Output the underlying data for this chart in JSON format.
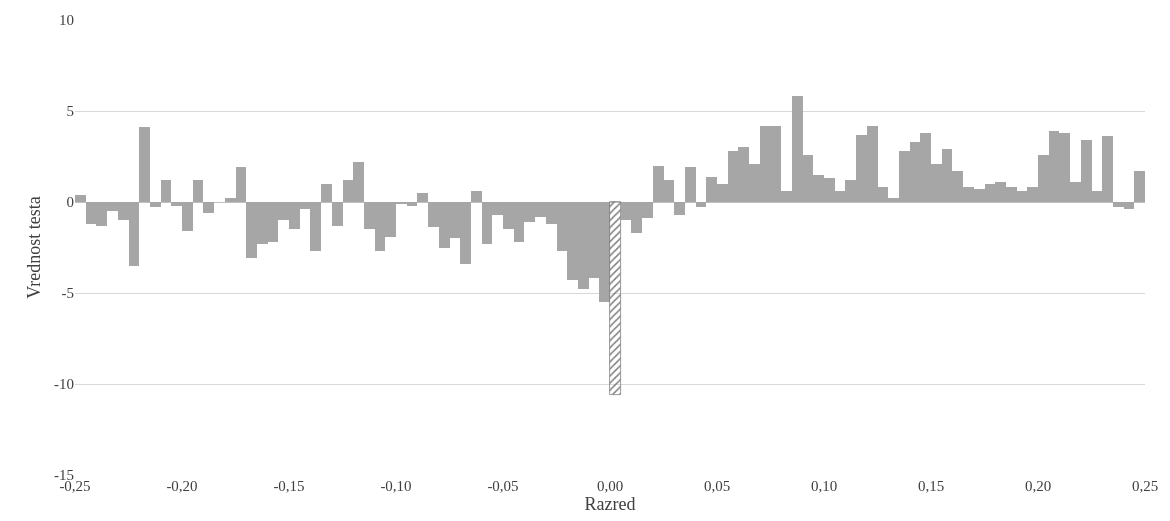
{
  "chart_data": {
    "type": "bar",
    "xlabel": "Razred",
    "ylabel": "Vrednost testa",
    "x": [
      -0.2475,
      -0.2425,
      -0.2375,
      -0.2325,
      -0.2275,
      -0.2225,
      -0.2175,
      -0.2125,
      -0.2075,
      -0.2025,
      -0.1975,
      -0.1925,
      -0.1875,
      -0.1825,
      -0.1775,
      -0.1725,
      -0.1675,
      -0.1625,
      -0.1575,
      -0.1525,
      -0.1475,
      -0.1425,
      -0.1375,
      -0.1325,
      -0.1275,
      -0.1225,
      -0.1175,
      -0.1125,
      -0.1075,
      -0.1025,
      -0.0975,
      -0.0925,
      -0.0875,
      -0.0825,
      -0.0775,
      -0.0725,
      -0.0675,
      -0.0625,
      -0.0575,
      -0.0525,
      -0.0475,
      -0.0425,
      -0.0375,
      -0.0325,
      -0.0275,
      -0.0225,
      -0.0175,
      -0.0125,
      -0.0075,
      -0.0025,
      0.0025,
      0.0075,
      0.0125,
      0.0175,
      0.0225,
      0.0275,
      0.0325,
      0.0375,
      0.0425,
      0.0475,
      0.0525,
      0.0575,
      0.0625,
      0.0675,
      0.0725,
      0.0775,
      0.0825,
      0.0875,
      0.0925,
      0.0975,
      0.1025,
      0.1075,
      0.1125,
      0.1175,
      0.1225,
      0.1275,
      0.1325,
      0.1375,
      0.1425,
      0.1475,
      0.1525,
      0.1575,
      0.1625,
      0.1675,
      0.1725,
      0.1775,
      0.1825,
      0.1875,
      0.1925,
      0.1975,
      0.2025,
      0.2075,
      0.2125,
      0.2175,
      0.2225,
      0.2275,
      0.2325,
      0.2375,
      0.2425,
      0.2475
    ],
    "values": [
      0.4,
      -1.2,
      -1.3,
      -0.5,
      -1.0,
      -3.5,
      4.1,
      -0.3,
      1.2,
      -0.2,
      -1.6,
      1.2,
      -0.6,
      null,
      0.2,
      1.9,
      -3.1,
      -2.3,
      -2.2,
      -1.0,
      -1.5,
      -0.4,
      -2.7,
      1.0,
      -1.3,
      1.2,
      2.2,
      -1.5,
      -2.7,
      -1.9,
      -0.1,
      -0.2,
      0.5,
      -1.4,
      -2.5,
      -2.0,
      -3.4,
      0.6,
      -2.3,
      -0.7,
      -1.5,
      -2.2,
      -1.1,
      -0.8,
      -1.2,
      -2.7,
      -4.3,
      -4.8,
      -4.2,
      -5.5,
      -10.6,
      -1.0,
      -1.7,
      -0.9,
      2.0,
      1.2,
      -0.7,
      1.9,
      -0.3,
      1.4,
      1.0,
      2.8,
      3.0,
      2.1,
      4.2,
      4.2,
      0.6,
      5.8,
      2.6,
      1.5,
      1.3,
      0.6,
      1.2,
      3.7,
      4.2,
      0.8,
      0.2,
      2.8,
      3.3,
      3.8,
      2.1,
      2.9,
      1.7,
      0.8,
      0.7,
      1.0,
      1.1,
      0.8,
      0.6,
      0.8,
      2.6,
      3.9,
      3.8,
      1.1,
      3.4,
      0.6,
      3.6,
      -0.3,
      -0.4,
      1.7
    ],
    "colors": [
      "#a6a6a6",
      "#a6a6a6",
      "#a6a6a6",
      "#a6a6a6",
      "#a6a6a6",
      "#a6a6a6",
      "#a6a6a6",
      "#a6a6a6",
      "#a6a6a6",
      "#a6a6a6",
      "#a6a6a6",
      "#a6a6a6",
      "#a6a6a6",
      "#a6a6a6",
      "#a6a6a6",
      "#a6a6a6",
      "#a6a6a6",
      "#a6a6a6",
      "#a6a6a6",
      "#a6a6a6",
      "#a6a6a6",
      "#a6a6a6",
      "#a6a6a6",
      "#a6a6a6",
      "#a6a6a6",
      "#a6a6a6",
      "#a6a6a6",
      "#a6a6a6",
      "#a6a6a6",
      "#a6a6a6",
      "#a6a6a6",
      "#a6a6a6",
      "#a6a6a6",
      "#a6a6a6",
      "#a6a6a6",
      "#a6a6a6",
      "#a6a6a6",
      "#a6a6a6",
      "#a6a6a6",
      "#a6a6a6",
      "#a6a6a6",
      "#a6a6a6",
      "#a6a6a6",
      "#a6a6a6",
      "#a6a6a6",
      "#a6a6a6",
      "#a6a6a6",
      "#a6a6a6",
      "#a6a6a6",
      "#a6a6a6",
      "#808080",
      "#a6a6a6",
      "#a6a6a6",
      "#a6a6a6",
      "#a6a6a6",
      "#a6a6a6",
      "#a6a6a6",
      "#a6a6a6",
      "#a6a6a6",
      "#a6a6a6",
      "#a6a6a6",
      "#a6a6a6",
      "#a6a6a6",
      "#a6a6a6",
      "#a6a6a6",
      "#a6a6a6",
      "#a6a6a6",
      "#a6a6a6",
      "#a6a6a6",
      "#a6a6a6",
      "#a6a6a6",
      "#a6a6a6",
      "#a6a6a6",
      "#a6a6a6",
      "#a6a6a6",
      "#a6a6a6",
      "#a6a6a6",
      "#a6a6a6",
      "#a6a6a6",
      "#a6a6a6",
      "#a6a6a6",
      "#a6a6a6",
      "#a6a6a6",
      "#a6a6a6",
      "#a6a6a6",
      "#a6a6a6",
      "#a6a6a6",
      "#a6a6a6",
      "#a6a6a6",
      "#a6a6a6",
      "#a6a6a6",
      "#a6a6a6",
      "#a6a6a6",
      "#a6a6a6",
      "#a6a6a6",
      "#a6a6a6",
      "#a6a6a6",
      "#a6a6a6",
      "#a6a6a6",
      "#a6a6a6"
    ],
    "xlim": [
      -0.25,
      0.25
    ],
    "xticks": [
      {
        "value": -0.25,
        "label": "-0,25"
      },
      {
        "value": -0.2,
        "label": "-0,20"
      },
      {
        "value": -0.15,
        "label": "-0,15"
      },
      {
        "value": -0.1,
        "label": "-0,10"
      },
      {
        "value": -0.05,
        "label": "-0,05"
      },
      {
        "value": 0,
        "label": "0,00"
      },
      {
        "value": 0.05,
        "label": "0,05"
      },
      {
        "value": 0.1,
        "label": "0,10"
      },
      {
        "value": 0.15,
        "label": "0,15"
      },
      {
        "value": 0.2,
        "label": "0,20"
      },
      {
        "value": 0.25,
        "label": "0,25"
      }
    ],
    "ylim": [
      -15,
      10
    ],
    "yticks": [
      -15,
      -10,
      -5,
      0,
      5,
      10
    ],
    "grid": "y"
  }
}
